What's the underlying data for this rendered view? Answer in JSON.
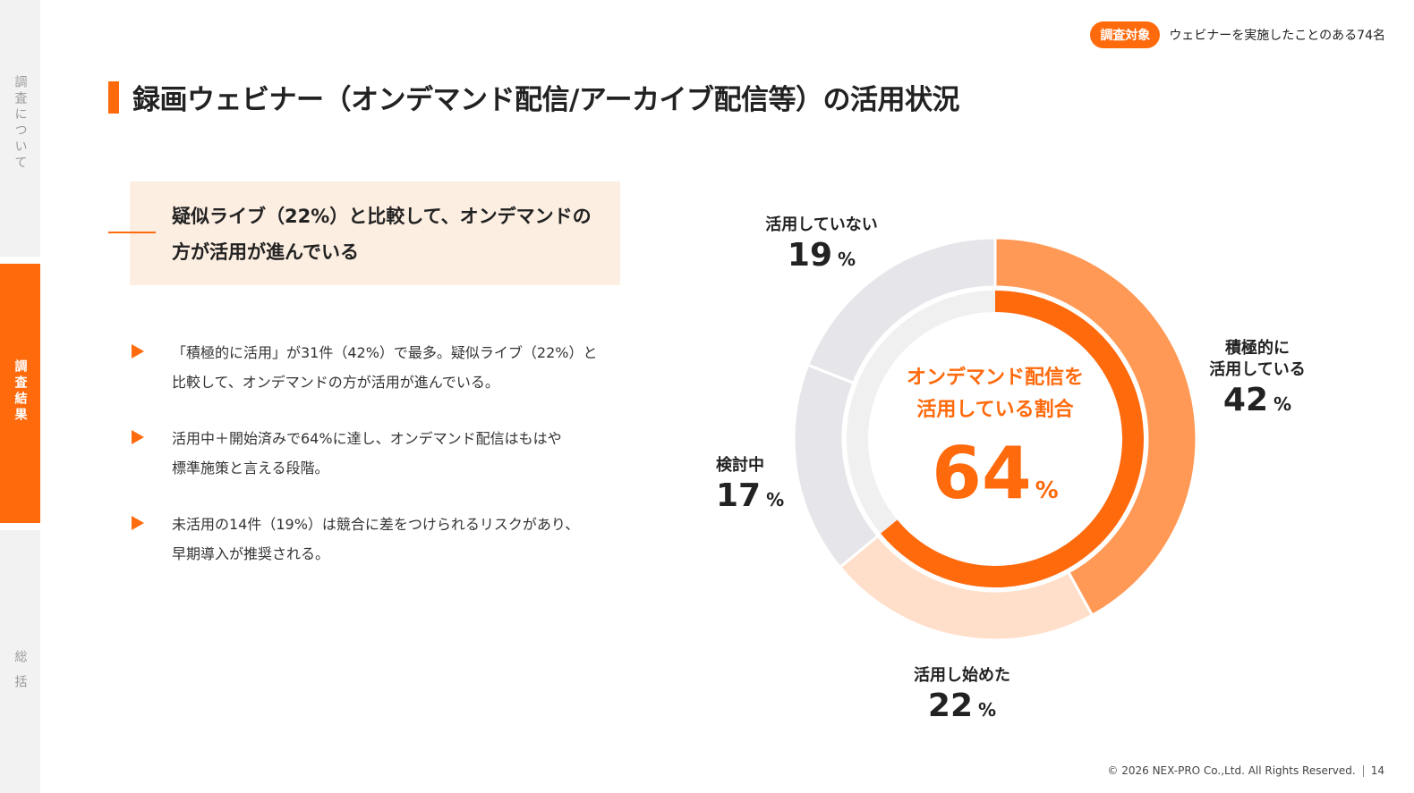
{
  "sidebar": {
    "sections": [
      {
        "label": "調査について",
        "active": false
      },
      {
        "label": "調査結果",
        "active": true
      },
      {
        "label": "総括",
        "active": false
      }
    ]
  },
  "target": {
    "badge": "調査対象",
    "text": "ウェビナーを実施したことのある74名"
  },
  "title": "録画ウェビナー（オンデマンド配信/アーカイブ配信等）の活用状況",
  "highlight": {
    "line1": "疑似ライブ（22%）と比較して、オンデマンドの",
    "line2": "方が活用が進んでいる"
  },
  "bullets": [
    {
      "line1": "「積極的に活用」が31件（42%）で最多。疑似ライブ（22%）と",
      "line2": "比較して、オンデマンドの方が活用が進んでいる。"
    },
    {
      "line1": "活用中＋開始済みで64%に達し、オンデマンド配信はもはや",
      "line2": "標準施策と言える段階。"
    },
    {
      "line1": "未活用の14件（19%）は競合に差をつけられるリスクがあり、",
      "line2": "早期導入が推奨される。"
    }
  ],
  "chart_data": {
    "type": "pie",
    "subtype": "donut",
    "unit": "%",
    "slices": [
      {
        "name": "積極的に活用している",
        "value": 42,
        "color": "#ff9955",
        "label_line1": "積極的に",
        "label_line2": "活用している"
      },
      {
        "name": "活用し始めた",
        "value": 22,
        "color": "#ffdfca",
        "label_line1": "活用し始めた",
        "label_line2": ""
      },
      {
        "name": "検討中",
        "value": 17,
        "color": "#e6e6ea",
        "label_line1": "検討中",
        "label_line2": ""
      },
      {
        "name": "活用していない",
        "value": 19,
        "color": "#e6e6ea",
        "label_line1": "活用していない",
        "label_line2": ""
      }
    ],
    "highlight_ring": {
      "name": "オンデマンド配信を活用している割合",
      "value": 64,
      "color": "#ff6a0d",
      "track_color": "#f0f0f0"
    },
    "center_caption_line1": "オンデマンド配信を",
    "center_caption_line2": "活用している割合",
    "center_value": "64",
    "center_unit": "%"
  },
  "footer": {
    "copyright": "© 2026 NEX-PRO Co.,Ltd. All Rights Reserved.",
    "page": "14"
  }
}
